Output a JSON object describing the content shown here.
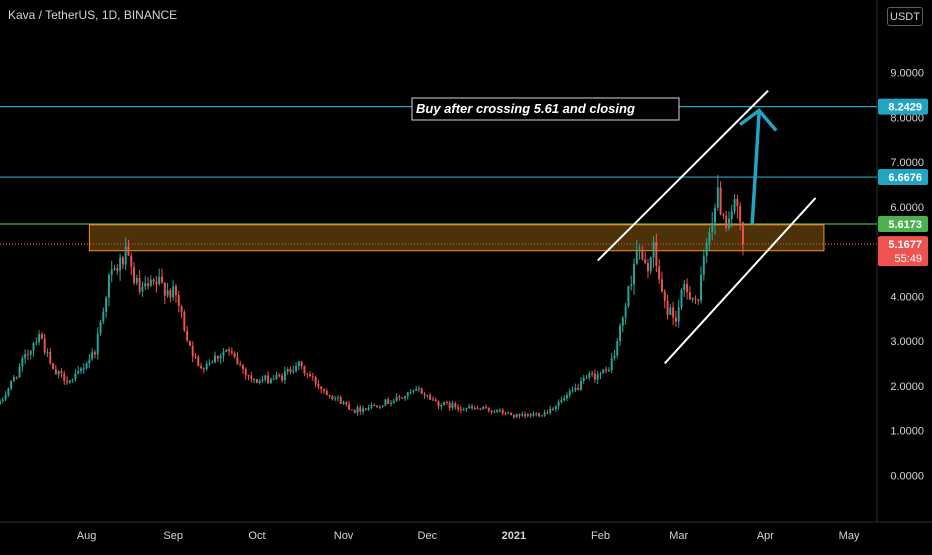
{
  "header": {
    "title": "Kava / TetherUS, 1D, BINANCE",
    "currency_button": "USDT"
  },
  "annotation": {
    "text": "Buy after crossing 5.61 and closing"
  },
  "price_badges": [
    {
      "value": 8.2429,
      "label": "8.2429",
      "color": "#22a5c2",
      "text_color": "#ffffff"
    },
    {
      "value": 6.6676,
      "label": "6.6676",
      "color": "#22a5c2",
      "text_color": "#ffffff"
    },
    {
      "value": 5.6173,
      "label": "5.6173",
      "color": "#4caf50",
      "text_color": "#ffffff"
    },
    {
      "value": 5.1677,
      "label": "5.1677",
      "sublabel": "55:49",
      "color": "#ef5350",
      "text_color": "#ffffff"
    }
  ],
  "colors": {
    "up": "#26a69a",
    "down": "#ef5350",
    "hline": "#22a5c2",
    "support": "#4caf50",
    "zone_fill": "#8a5a10",
    "zone_border": "#f7931a",
    "arrow": "#22a5c2",
    "channel": "#ffffff",
    "axis_text": "#d1d4dc"
  },
  "chart_data": {
    "type": "candlestick",
    "title": "Kava / TetherUS, 1D, BINANCE",
    "ylim": [
      -1.0,
      10.0
    ],
    "y_ticks": [
      {
        "value": 9,
        "label": "9.0000"
      },
      {
        "value": 8,
        "label": "8.0000"
      },
      {
        "value": 7,
        "label": "7.0000"
      },
      {
        "value": 6,
        "label": "6.0000"
      },
      {
        "value": 4,
        "label": "4.0000"
      },
      {
        "value": 3,
        "label": "3.0000"
      },
      {
        "value": 2,
        "label": "2.0000"
      },
      {
        "value": 1,
        "label": "1.0000"
      },
      {
        "value": 0,
        "label": "0.0000"
      }
    ],
    "x_ticks": [
      {
        "date": "2020-08-01",
        "label": "Aug"
      },
      {
        "date": "2020-09-01",
        "label": "Sep"
      },
      {
        "date": "2020-10-01",
        "label": "Oct"
      },
      {
        "date": "2020-11-01",
        "label": "Nov"
      },
      {
        "date": "2020-12-01",
        "label": "Dec"
      },
      {
        "date": "2021-01-01",
        "label": "2021"
      },
      {
        "date": "2021-02-01",
        "label": "Feb"
      },
      {
        "date": "2021-03-01",
        "label": "Mar"
      },
      {
        "date": "2021-04-01",
        "label": "Apr"
      },
      {
        "date": "2021-05-01",
        "label": "May"
      }
    ],
    "xlim": [
      "2020-07-01",
      "2021-05-11"
    ],
    "close_path": [
      [
        "2020-07-01",
        1.6
      ],
      [
        "2020-07-08",
        2.4
      ],
      [
        "2020-07-15",
        3.2
      ],
      [
        "2020-07-20",
        2.3
      ],
      [
        "2020-07-27",
        2.1
      ],
      [
        "2020-08-04",
        2.8
      ],
      [
        "2020-08-09",
        4.4
      ],
      [
        "2020-08-15",
        4.9
      ],
      [
        "2020-08-20",
        4.1
      ],
      [
        "2020-08-27",
        4.3
      ],
      [
        "2020-09-02",
        4.0
      ],
      [
        "2020-09-06",
        3.1
      ],
      [
        "2020-09-10",
        2.4
      ],
      [
        "2020-09-20",
        2.8
      ],
      [
        "2020-09-30",
        2.1
      ],
      [
        "2020-10-10",
        2.2
      ],
      [
        "2020-10-15",
        2.5
      ],
      [
        "2020-10-25",
        1.9
      ],
      [
        "2020-11-05",
        1.45
      ],
      [
        "2020-11-20",
        1.7
      ],
      [
        "2020-11-28",
        1.9
      ],
      [
        "2020-12-05",
        1.6
      ],
      [
        "2020-12-15",
        1.5
      ],
      [
        "2020-12-25",
        1.45
      ],
      [
        "2021-01-03",
        1.3
      ],
      [
        "2021-01-12",
        1.4
      ],
      [
        "2021-01-20",
        1.75
      ],
      [
        "2021-01-28",
        2.2
      ],
      [
        "2021-02-03",
        2.3
      ],
      [
        "2021-02-06",
        2.7
      ],
      [
        "2021-02-11",
        4.1
      ],
      [
        "2021-02-14",
        5.1
      ],
      [
        "2021-02-17",
        4.6
      ],
      [
        "2021-02-20",
        5.0
      ],
      [
        "2021-02-24",
        3.8
      ],
      [
        "2021-02-28",
        3.5
      ],
      [
        "2021-03-03",
        4.2
      ],
      [
        "2021-03-08",
        3.9
      ],
      [
        "2021-03-12",
        5.6
      ],
      [
        "2021-03-15",
        6.2
      ],
      [
        "2021-03-18",
        5.7
      ],
      [
        "2021-03-21",
        6.1
      ],
      [
        "2021-03-24",
        5.1677
      ]
    ],
    "horizontal_lines": [
      {
        "value": 8.2429,
        "color": "#22a5c2"
      },
      {
        "value": 6.6676,
        "color": "#22a5c2"
      },
      {
        "value": 5.6173,
        "color": "#4caf50"
      },
      {
        "value": 5.1677,
        "color": "#ef5350",
        "style": "dotted"
      }
    ],
    "zone": {
      "from": "2020-08-02",
      "to": "2021-04-22",
      "low": 5.02,
      "high": 5.6
    },
    "channel": {
      "upper": [
        [
          "2021-01-31",
          4.8
        ],
        [
          "2021-04-02",
          8.6
        ]
      ],
      "lower": [
        [
          "2021-02-24",
          2.5
        ],
        [
          "2021-04-19",
          6.2
        ]
      ]
    },
    "arrow": {
      "from": [
        "2021-03-28",
        5.6
      ],
      "to": [
        "2021-03-28",
        8.2
      ]
    }
  }
}
